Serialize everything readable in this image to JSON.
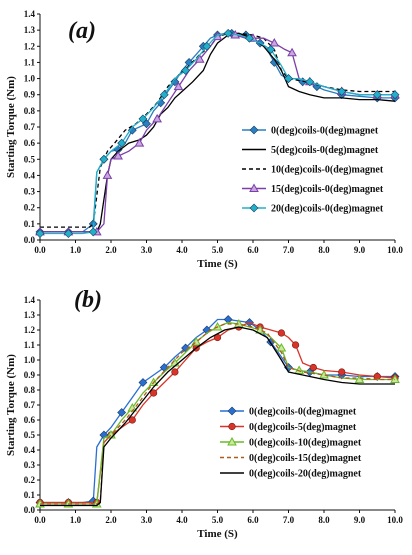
{
  "chart_data": [
    {
      "type": "line",
      "panel_label": "(a)",
      "xlabel": "Time (S)",
      "ylabel": "Starting Torque (Nm)",
      "xlim": [
        0,
        10
      ],
      "ylim": [
        0,
        1.4
      ],
      "x_ticks": [
        "0.0",
        "1.0",
        "2.0",
        "3.0",
        "4.0",
        "5.0",
        "6.0",
        "7.0",
        "8.0",
        "9.0",
        "10.0"
      ],
      "y_ticks": [
        "0.0",
        "0.1",
        "0.2",
        "0.3",
        "0.4",
        "0.5",
        "0.6",
        "0.7",
        "0.8",
        "0.9",
        "1.0",
        "1.1",
        "1.2",
        "1.3",
        "1.4"
      ],
      "grid": false,
      "legend_position": "right",
      "series": [
        {
          "name": "0(deg)coils-0(deg)magnet",
          "color": "#2a7fc0",
          "dash": "",
          "marker": "diamond",
          "x": [
            0,
            0.4,
            0.8,
            1.2,
            1.5,
            1.6,
            1.8,
            2.0,
            2.2,
            2.4,
            2.6,
            2.8,
            3.0,
            3.2,
            3.4,
            3.6,
            3.8,
            4.0,
            4.2,
            4.4,
            4.6,
            4.8,
            5.0,
            5.2,
            5.4,
            5.6,
            5.8,
            6.0,
            6.2,
            6.4,
            6.6,
            6.8,
            7.0,
            7.2,
            7.4,
            7.6,
            7.8,
            8.0,
            8.5,
            9.0,
            9.5,
            10.0
          ],
          "y": [
            0.05,
            0.05,
            0.05,
            0.05,
            0.1,
            0.42,
            0.5,
            0.55,
            0.56,
            0.6,
            0.68,
            0.7,
            0.72,
            0.8,
            0.85,
            0.92,
            0.98,
            1.05,
            1.1,
            1.15,
            1.2,
            1.25,
            1.27,
            1.28,
            1.28,
            1.28,
            1.27,
            1.25,
            1.22,
            1.18,
            1.1,
            1.02,
            1.0,
            1.0,
            0.98,
            0.97,
            0.95,
            0.93,
            0.9,
            0.89,
            0.88,
            0.88
          ]
        },
        {
          "name": "5(deg)coils-0(deg)magnet",
          "color": "#000000",
          "dash": "",
          "marker": "none",
          "x": [
            0,
            1.0,
            1.6,
            1.7,
            1.9,
            2.0,
            2.2,
            2.5,
            2.8,
            3.0,
            3.2,
            3.4,
            3.6,
            3.8,
            4.0,
            4.3,
            4.6,
            4.8,
            5.0,
            5.3,
            5.6,
            6.0,
            6.3,
            6.6,
            6.8,
            7.0,
            7.3,
            7.6,
            8.0,
            8.5,
            9.0,
            9.5,
            10.0
          ],
          "y": [
            0.05,
            0.05,
            0.05,
            0.1,
            0.4,
            0.5,
            0.55,
            0.6,
            0.62,
            0.65,
            0.7,
            0.78,
            0.82,
            0.88,
            0.92,
            0.98,
            1.05,
            1.15,
            1.22,
            1.27,
            1.28,
            1.25,
            1.2,
            1.12,
            1.05,
            0.95,
            0.92,
            0.9,
            0.88,
            0.88,
            0.87,
            0.87,
            0.86
          ]
        },
        {
          "name": "10(deg)coils-0(deg)magnet",
          "color": "#000000",
          "dash": "4,3",
          "marker": "none",
          "x": [
            0,
            1.0,
            1.4,
            1.5,
            1.7,
            1.9,
            2.1,
            2.4,
            2.7,
            3.0,
            3.3,
            3.6,
            3.9,
            4.2,
            4.5,
            4.8,
            5.0,
            5.3,
            5.6,
            6.0,
            6.3,
            6.6,
            6.8,
            7.0,
            7.5,
            8.0,
            8.5,
            9.0,
            9.5,
            10.0
          ],
          "y": [
            0.08,
            0.08,
            0.08,
            0.1,
            0.45,
            0.55,
            0.6,
            0.68,
            0.72,
            0.78,
            0.85,
            0.95,
            1.02,
            1.08,
            1.15,
            1.2,
            1.26,
            1.28,
            1.28,
            1.27,
            1.25,
            1.18,
            1.05,
            1.0,
            0.98,
            0.95,
            0.93,
            0.92,
            0.92,
            0.92
          ]
        },
        {
          "name": "15(deg)coils-0(deg)magnet",
          "color": "#7a3fa8",
          "dash": "",
          "marker": "triangle",
          "x": [
            0,
            0.4,
            0.8,
            1.2,
            1.6,
            1.8,
            1.9,
            2.0,
            2.2,
            2.5,
            2.8,
            3.0,
            3.3,
            3.6,
            3.9,
            4.2,
            4.5,
            4.8,
            5.0,
            5.2,
            5.5,
            5.8,
            6.0,
            6.3,
            6.6,
            6.9,
            7.1,
            7.3,
            7.6,
            8.0,
            8.5,
            9.0,
            9.5,
            10.0
          ],
          "y": [
            0.05,
            0.05,
            0.05,
            0.05,
            0.05,
            0.1,
            0.4,
            0.5,
            0.52,
            0.55,
            0.6,
            0.68,
            0.75,
            0.85,
            0.95,
            1.05,
            1.12,
            1.2,
            1.26,
            1.28,
            1.27,
            1.25,
            1.25,
            1.25,
            1.22,
            1.18,
            1.16,
            1.0,
            0.98,
            0.95,
            0.92,
            0.9,
            0.9,
            0.9
          ]
        },
        {
          "name": "20(deg)coils-0(deg)magnet",
          "color": "#22b0c8",
          "dash": "",
          "marker": "diamond",
          "x": [
            0,
            0.4,
            0.8,
            1.2,
            1.5,
            1.6,
            1.8,
            2.0,
            2.3,
            2.6,
            2.9,
            3.2,
            3.5,
            3.8,
            4.1,
            4.4,
            4.7,
            5.0,
            5.3,
            5.6,
            5.9,
            6.2,
            6.5,
            6.8,
            7.0,
            7.3,
            7.6,
            8.0,
            8.5,
            9.0,
            9.5,
            10.0
          ],
          "y": [
            0.04,
            0.04,
            0.04,
            0.04,
            0.05,
            0.42,
            0.5,
            0.55,
            0.6,
            0.7,
            0.75,
            0.82,
            0.9,
            1.0,
            1.05,
            1.12,
            1.2,
            1.27,
            1.28,
            1.27,
            1.25,
            1.22,
            1.18,
            1.08,
            1.0,
            1.0,
            0.98,
            0.95,
            0.92,
            0.9,
            0.9,
            0.9
          ]
        }
      ]
    },
    {
      "type": "line",
      "panel_label": "(b)",
      "xlabel": "Time (S)",
      "ylabel": "Starting Torque (Nm)",
      "xlim": [
        0,
        10
      ],
      "ylim": [
        0,
        1.4
      ],
      "x_ticks": [
        "0.0",
        "1.0",
        "2.0",
        "3.0",
        "4.0",
        "5.0",
        "6.0",
        "7.0",
        "8.0",
        "9.0",
        "10.0"
      ],
      "y_ticks": [
        "0.0",
        "0.1",
        "0.2",
        "0.3",
        "0.4",
        "0.5",
        "0.6",
        "0.7",
        "0.8",
        "0.9",
        "1.0",
        "1.1",
        "1.2",
        "1.3",
        "1.4"
      ],
      "grid": false,
      "legend_position": "right",
      "series": [
        {
          "name": "0(deg)coils-0(deg)magnet",
          "color": "#2a6fd0",
          "dash": "",
          "marker": "diamond",
          "x": [
            0,
            0.4,
            0.8,
            1.2,
            1.5,
            1.6,
            1.8,
            2.0,
            2.3,
            2.6,
            2.9,
            3.2,
            3.5,
            3.8,
            4.1,
            4.4,
            4.7,
            5.0,
            5.3,
            5.6,
            5.9,
            6.2,
            6.5,
            6.8,
            7.0,
            7.3,
            7.6,
            8.0,
            8.5,
            9.0,
            9.5,
            10.0
          ],
          "y": [
            0.05,
            0.05,
            0.05,
            0.05,
            0.06,
            0.42,
            0.5,
            0.55,
            0.65,
            0.75,
            0.85,
            0.9,
            0.95,
            1.02,
            1.08,
            1.15,
            1.2,
            1.27,
            1.27,
            1.26,
            1.25,
            1.2,
            1.12,
            1.02,
            0.95,
            0.93,
            0.92,
            0.9,
            0.9,
            0.89,
            0.89,
            0.89
          ]
        },
        {
          "name": "0(deg)coils-5(deg)magnet",
          "color": "#d8352a",
          "dash": "",
          "marker": "circle",
          "x": [
            0,
            0.4,
            0.8,
            1.2,
            1.6,
            1.8,
            2.0,
            2.3,
            2.6,
            2.9,
            3.2,
            3.5,
            3.8,
            4.1,
            4.4,
            4.7,
            5.0,
            5.3,
            5.6,
            5.9,
            6.2,
            6.5,
            6.8,
            7.0,
            7.2,
            7.4,
            7.7,
            8.0,
            8.5,
            9.0,
            9.5,
            10.0
          ],
          "y": [
            0.05,
            0.05,
            0.05,
            0.05,
            0.05,
            0.45,
            0.5,
            0.55,
            0.6,
            0.7,
            0.78,
            0.85,
            0.92,
            1.0,
            1.08,
            1.12,
            1.15,
            1.2,
            1.22,
            1.25,
            1.22,
            1.2,
            1.18,
            1.15,
            1.1,
            0.98,
            0.95,
            0.93,
            0.92,
            0.9,
            0.89,
            0.88
          ]
        },
        {
          "name": "0(deg)coils-10(deg)magnet",
          "color": "#6ab82a",
          "dash": "",
          "marker": "triangle",
          "x": [
            0,
            0.4,
            0.8,
            1.2,
            1.6,
            1.8,
            2.0,
            2.3,
            2.6,
            2.9,
            3.2,
            3.5,
            3.8,
            4.1,
            4.4,
            4.7,
            5.0,
            5.3,
            5.6,
            5.9,
            6.2,
            6.5,
            6.8,
            7.0,
            7.3,
            7.6,
            8.0,
            8.5,
            9.0,
            9.5,
            10.0
          ],
          "y": [
            0.04,
            0.04,
            0.04,
            0.04,
            0.04,
            0.48,
            0.5,
            0.6,
            0.68,
            0.78,
            0.85,
            0.92,
            0.98,
            1.05,
            1.12,
            1.18,
            1.22,
            1.25,
            1.24,
            1.22,
            1.2,
            1.15,
            1.08,
            0.95,
            0.93,
            0.92,
            0.9,
            0.88,
            0.87,
            0.87,
            0.87
          ]
        },
        {
          "name": "0(deg)coils-15(deg)magnet",
          "color": "#b05a1a",
          "dash": "4,3",
          "marker": "none",
          "x": [
            0,
            1.0,
            1.6,
            1.7,
            1.8,
            2.0,
            2.4,
            2.8,
            3.2,
            3.6,
            4.0,
            4.4,
            4.8,
            5.2,
            5.6,
            6.0,
            6.4,
            6.8,
            7.0,
            7.4,
            8.0,
            8.5,
            9.0,
            9.5,
            10.0
          ],
          "y": [
            0.04,
            0.04,
            0.04,
            0.06,
            0.45,
            0.5,
            0.6,
            0.72,
            0.85,
            0.95,
            1.05,
            1.12,
            1.2,
            1.24,
            1.24,
            1.22,
            1.18,
            1.05,
            0.95,
            0.92,
            0.9,
            0.88,
            0.88,
            0.87,
            0.87
          ]
        },
        {
          "name": "0(deg)coils-20(deg)magnet",
          "color": "#000000",
          "dash": "",
          "marker": "none",
          "x": [
            0,
            1.0,
            1.6,
            1.7,
            1.8,
            2.0,
            2.4,
            2.8,
            3.2,
            3.6,
            4.0,
            4.4,
            4.8,
            5.2,
            5.6,
            6.0,
            6.4,
            6.8,
            7.0,
            7.4,
            8.0,
            8.5,
            9.0,
            9.5,
            10.0
          ],
          "y": [
            0.03,
            0.03,
            0.03,
            0.05,
            0.42,
            0.48,
            0.58,
            0.7,
            0.82,
            0.92,
            1.0,
            1.08,
            1.15,
            1.2,
            1.22,
            1.2,
            1.15,
            1.0,
            0.92,
            0.9,
            0.87,
            0.85,
            0.84,
            0.84,
            0.84
          ]
        }
      ]
    }
  ]
}
